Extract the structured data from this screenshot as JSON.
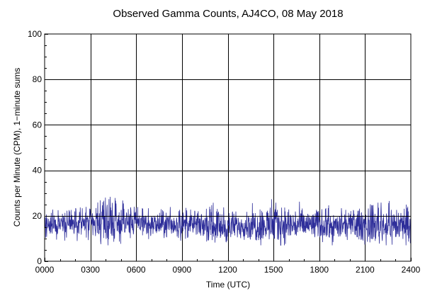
{
  "chart_data": {
    "type": "line",
    "title": "Observed Gamma Counts, AJ4CO, 08 May 2018",
    "xlabel": "Time (UTC)",
    "ylabel": "Counts per Minute (CPM), 1−minute sums",
    "x_tick_labels": [
      "0000",
      "0300",
      "0600",
      "0900",
      "1200",
      "1500",
      "1800",
      "2100",
      "2400"
    ],
    "x_range_minutes": [
      0,
      1440
    ],
    "y_ticks": [
      0,
      20,
      40,
      60,
      80,
      100
    ],
    "ylim": [
      0,
      100
    ],
    "grid": true,
    "reference_line_y": 20,
    "series": [
      {
        "color": "#2e2e9a",
        "sample_interval_minutes": 1,
        "typical_range": [
          10,
          25
        ],
        "mean": 16,
        "peak": 29,
        "min": 7,
        "x_minutes": [
          0,
          60,
          120,
          180,
          240,
          300,
          360,
          420,
          480,
          540,
          600,
          660,
          720,
          780,
          840,
          900,
          960,
          1020,
          1080,
          1140,
          1200,
          1260,
          1320,
          1380,
          1440
        ],
        "mean_by_hour": [
          16,
          16,
          17,
          16,
          16,
          17,
          17,
          16,
          16,
          16,
          16,
          16,
          15,
          16,
          16,
          16,
          16,
          16,
          16,
          15,
          16,
          16,
          16,
          16,
          16
        ],
        "peak_by_hour": [
          23,
          23,
          25,
          25,
          29,
          27,
          26,
          23,
          24,
          24,
          23,
          26,
          24,
          23,
          27,
          28,
          27,
          25,
          25,
          24,
          23,
          27,
          27,
          27,
          25
        ]
      }
    ]
  }
}
